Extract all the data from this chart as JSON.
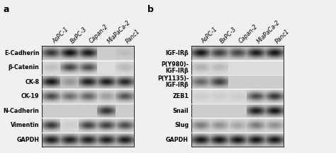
{
  "panel_a_label": "a",
  "panel_b_label": "b",
  "col_labels": [
    "AsPC-1",
    "BxPC-3",
    "Capan-2",
    "MiaPaCa-2",
    "Panc1"
  ],
  "panel_a_rows": [
    "E-Cadherin",
    "β-Catenin",
    "CK-8",
    "CK-19",
    "N-Cadherin",
    "Vimentin",
    "GAPDH"
  ],
  "panel_b_rows": [
    "IGF-IRβ",
    "P(Y980)-\nIGF-IRβ",
    "P(Y1135)-\nIGF-IRβ",
    "ZEB1",
    "Snail",
    "Slug",
    "GAPDH"
  ],
  "fig_bg": "#f0f0f0",
  "label_fontsize": 5.8,
  "col_label_fontsize": 5.8,
  "panel_label_fontsize": 9,
  "panel_a_bands": [
    [
      0.75,
      0.95,
      0.9,
      0.03,
      0.08
    ],
    [
      0.15,
      0.75,
      0.72,
      0.04,
      0.18
    ],
    [
      0.92,
      0.28,
      0.88,
      0.88,
      0.82
    ],
    [
      0.72,
      0.55,
      0.6,
      0.32,
      0.68
    ],
    [
      0.03,
      0.03,
      0.03,
      0.78,
      0.03
    ],
    [
      0.82,
      0.08,
      0.78,
      0.78,
      0.72
    ],
    [
      0.88,
      0.88,
      0.88,
      0.88,
      0.88
    ]
  ],
  "panel_b_bands": [
    [
      0.92,
      0.72,
      0.68,
      0.88,
      0.92
    ],
    [
      0.22,
      0.18,
      0.03,
      0.03,
      0.03
    ],
    [
      0.52,
      0.72,
      0.03,
      0.03,
      0.03
    ],
    [
      0.08,
      0.08,
      0.08,
      0.72,
      0.82
    ],
    [
      0.03,
      0.03,
      0.03,
      0.88,
      0.92
    ],
    [
      0.48,
      0.38,
      0.28,
      0.48,
      0.38
    ],
    [
      0.92,
      0.92,
      0.92,
      0.92,
      0.92
    ]
  ],
  "row_bg_colors": [
    "#c8c8c8",
    "#d5d5d5",
    "#c8c8c8",
    "#d5d5d5",
    "#c8c8c8",
    "#d5d5d5",
    "#c8c8c8"
  ]
}
